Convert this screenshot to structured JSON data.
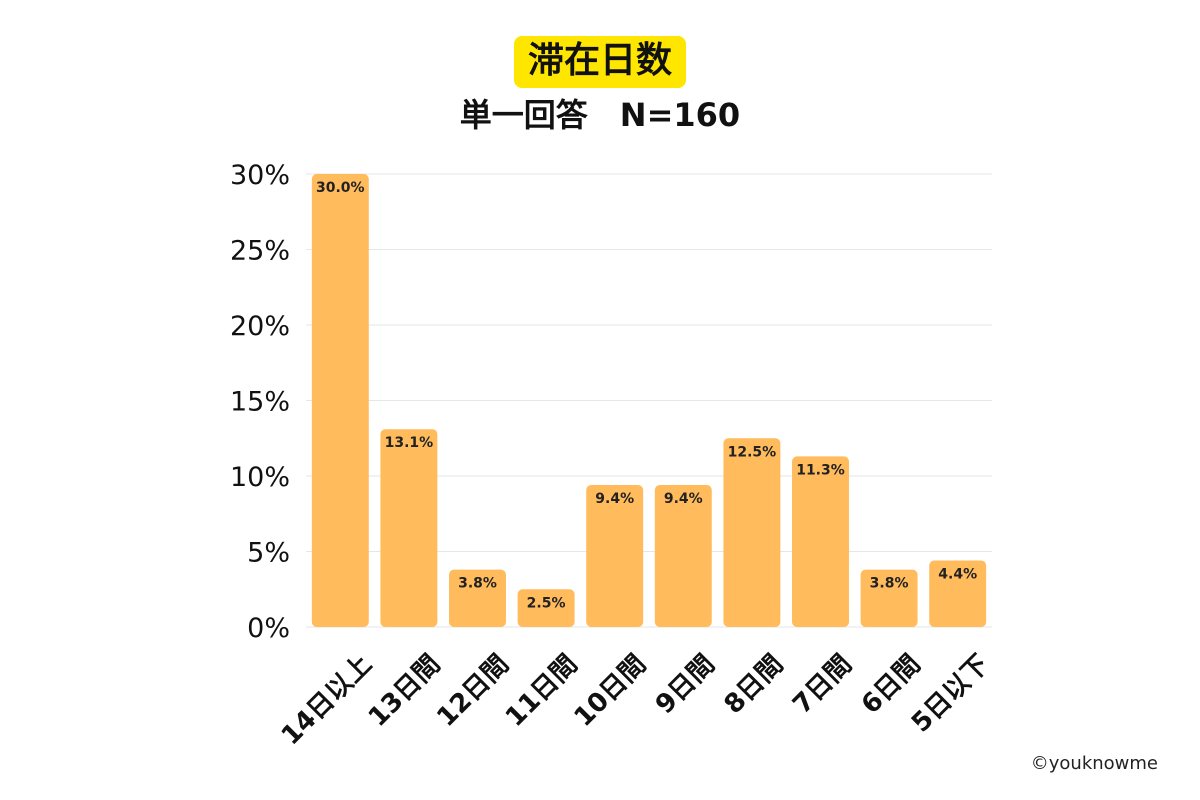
{
  "colors": {
    "bar": "#ffbb5c",
    "title_highlight": "#ffe600",
    "grid": "#e6e6e6"
  },
  "credit": "©youknowme",
  "chart_data": {
    "type": "bar",
    "title": "滞在日数",
    "subtitle": "単一回答　N=160",
    "categories": [
      "14日以上",
      "13日間",
      "12日間",
      "11日間",
      "10日間",
      "9日間",
      "8日間",
      "7日間",
      "6日間",
      "5日以下"
    ],
    "values": [
      30.0,
      13.1,
      3.8,
      2.5,
      9.4,
      9.4,
      12.5,
      11.3,
      3.8,
      4.4
    ],
    "data_labels": [
      "30.0%",
      "13.1%",
      "3.8%",
      "2.5%",
      "9.4%",
      "9.4%",
      "12.5%",
      "11.3%",
      "3.8%",
      "4.4%"
    ],
    "ylim": [
      0,
      30
    ],
    "yticks": [
      0,
      5,
      10,
      15,
      20,
      25,
      30
    ],
    "ytick_labels": [
      "0%",
      "5%",
      "10%",
      "15%",
      "20%",
      "25%",
      "30%"
    ],
    "grid": true,
    "xlabel": "",
    "ylabel": ""
  }
}
